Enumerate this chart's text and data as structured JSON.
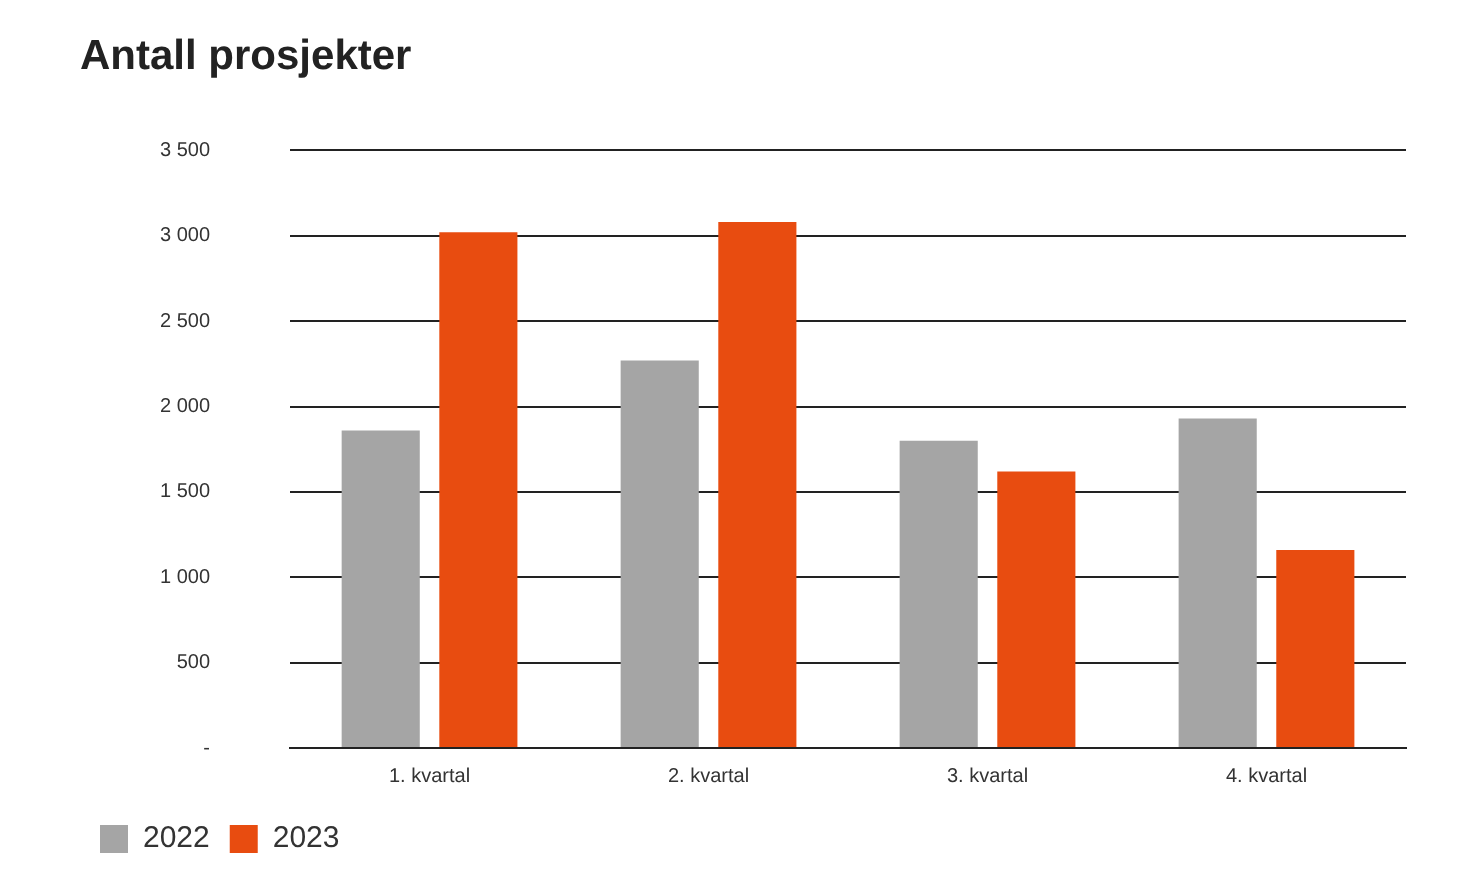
{
  "chart_data": {
    "type": "bar",
    "title": "Antall prosjekter",
    "categories": [
      "1. kvartal",
      "2. kvartal",
      "3. kvartal",
      "4. kvartal"
    ],
    "series": [
      {
        "name": "2022",
        "color": "#a5a5a5",
        "values": [
          1860,
          2270,
          1800,
          1930
        ]
      },
      {
        "name": "2023",
        "color": "#e84c10",
        "values": [
          3020,
          3080,
          1620,
          1160
        ]
      }
    ],
    "ylim": [
      0,
      3500
    ],
    "yticks": [
      {
        "value": 0,
        "label": "-"
      },
      {
        "value": 500,
        "label": "500"
      },
      {
        "value": 1000,
        "label": "1 000"
      },
      {
        "value": 1500,
        "label": "1 500"
      },
      {
        "value": 2000,
        "label": "2 000"
      },
      {
        "value": 2500,
        "label": "2 500"
      },
      {
        "value": 3000,
        "label": "3 000"
      },
      {
        "value": 3500,
        "label": "3 500"
      }
    ],
    "grid": "y",
    "legend": "bottom left"
  }
}
